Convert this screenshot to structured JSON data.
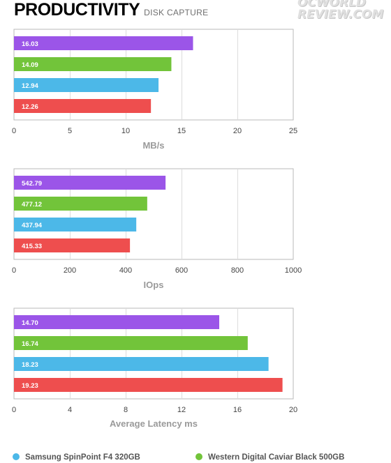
{
  "header": {
    "title": "PRODUCTIVITY",
    "subtitle": "DISK CAPTURE",
    "watermark_top": "OCWORLD",
    "watermark_bottom": "REVIEW.COM"
  },
  "colors": {
    "purple": "#9b55e8",
    "green": "#72c43a",
    "blue": "#4cb8e8",
    "red": "#ee4e4e",
    "grid": "#dcdcdc",
    "frame": "#b9b9b9",
    "axis_text": "#444444",
    "axis_label": "#9a9a9a"
  },
  "chart_data": [
    {
      "type": "bar",
      "orientation": "horizontal",
      "xlabel": "MB/s",
      "xlim": [
        0,
        25
      ],
      "xticks": [
        0,
        5,
        10,
        15,
        20,
        25
      ],
      "grid": true,
      "bars": [
        {
          "value": 16.03,
          "label": "16.03",
          "color": "#9b55e8"
        },
        {
          "value": 14.09,
          "label": "14.09",
          "color": "#72c43a"
        },
        {
          "value": 12.94,
          "label": "12.94",
          "color": "#4cb8e8"
        },
        {
          "value": 12.26,
          "label": "12.26",
          "color": "#ee4e4e"
        }
      ]
    },
    {
      "type": "bar",
      "orientation": "horizontal",
      "xlabel": "IOps",
      "xlim": [
        0,
        1000
      ],
      "xticks": [
        0,
        200,
        400,
        600,
        800,
        1000
      ],
      "grid": true,
      "bars": [
        {
          "value": 542.79,
          "label": "542.79",
          "color": "#9b55e8"
        },
        {
          "value": 477.12,
          "label": "477.12",
          "color": "#72c43a"
        },
        {
          "value": 437.94,
          "label": "437.94",
          "color": "#4cb8e8"
        },
        {
          "value": 415.33,
          "label": "415.33",
          "color": "#ee4e4e"
        }
      ]
    },
    {
      "type": "bar",
      "orientation": "horizontal",
      "xlabel": "Average Latency ms",
      "xlim": [
        0,
        20
      ],
      "xticks": [
        0,
        4,
        8,
        12,
        16,
        20
      ],
      "grid": true,
      "bars": [
        {
          "value": 14.7,
          "label": "14.70",
          "color": "#9b55e8"
        },
        {
          "value": 16.74,
          "label": "16.74",
          "color": "#72c43a"
        },
        {
          "value": 18.23,
          "label": "18.23",
          "color": "#4cb8e8"
        },
        {
          "value": 19.23,
          "label": "19.23",
          "color": "#ee4e4e"
        }
      ]
    }
  ],
  "legend": [
    {
      "name": "Samsung SpinPoint F4 320GB",
      "color": "#4cb8e8"
    },
    {
      "name": "Western Digital Caviar Black 500GB",
      "color": "#72c43a"
    }
  ]
}
